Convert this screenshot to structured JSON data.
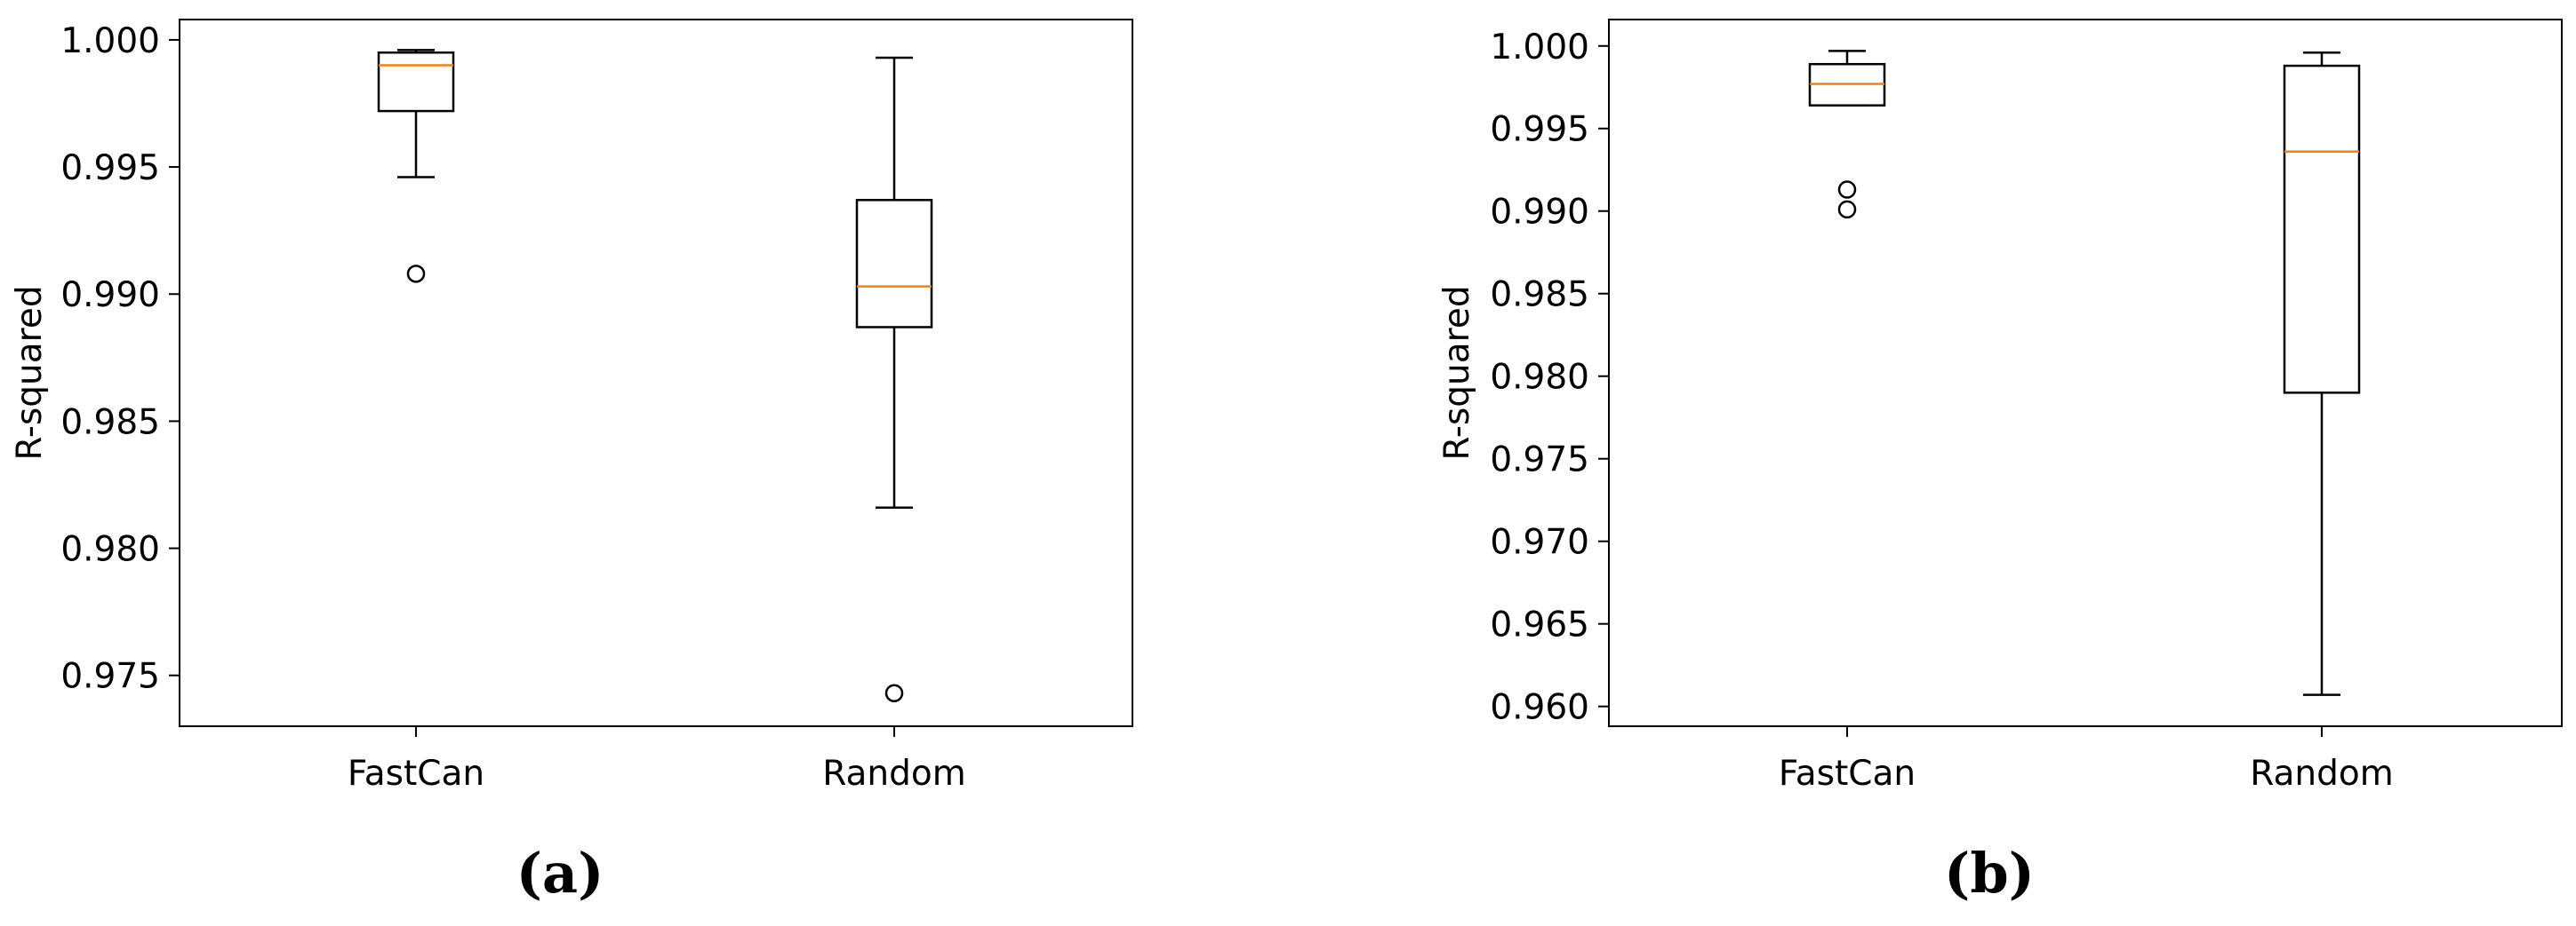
{
  "chart_data": [
    {
      "type": "box",
      "panel_label": "(a)",
      "ylabel": "R-squared",
      "ylim": [
        0.973,
        1.0008
      ],
      "yticks": [
        0.975,
        0.98,
        0.985,
        0.99,
        0.995,
        1.0
      ],
      "ytick_labels": [
        "0.975",
        "0.980",
        "0.985",
        "0.990",
        "0.995",
        "1.000"
      ],
      "categories": [
        "FastCan",
        "Random"
      ],
      "boxes": [
        {
          "category": "FastCan",
          "whisker_low": 0.9946,
          "q1": 0.9972,
          "median": 0.999,
          "q3": 0.9995,
          "whisker_high": 0.9996,
          "outliers": [
            0.9908
          ]
        },
        {
          "category": "Random",
          "whisker_low": 0.9816,
          "q1": 0.9887,
          "median": 0.9903,
          "q3": 0.9937,
          "whisker_high": 0.9993,
          "outliers": [
            0.9743
          ]
        }
      ],
      "grid": false
    },
    {
      "type": "box",
      "panel_label": "(b)",
      "ylabel": "R-squared",
      "ylim": [
        0.9588,
        1.0016
      ],
      "yticks": [
        0.96,
        0.965,
        0.97,
        0.975,
        0.98,
        0.985,
        0.99,
        0.995,
        1.0
      ],
      "ytick_labels": [
        "0.960",
        "0.965",
        "0.970",
        "0.975",
        "0.980",
        "0.985",
        "0.990",
        "0.995",
        "1.000"
      ],
      "categories": [
        "FastCan",
        "Random"
      ],
      "boxes": [
        {
          "category": "FastCan",
          "whisker_low": 0.9964,
          "q1": 0.9964,
          "median": 0.9977,
          "q3": 0.9989,
          "whisker_high": 0.9997,
          "outliers": [
            0.9913,
            0.9901
          ]
        },
        {
          "category": "Random",
          "whisker_low": 0.9607,
          "q1": 0.979,
          "median": 0.9936,
          "q3": 0.9988,
          "whisker_high": 0.9996,
          "outliers": []
        }
      ],
      "grid": false
    }
  ],
  "colors": {
    "axis": "#000000",
    "box": "#000000",
    "median": "#ff7f0e",
    "background": "#ffffff"
  }
}
